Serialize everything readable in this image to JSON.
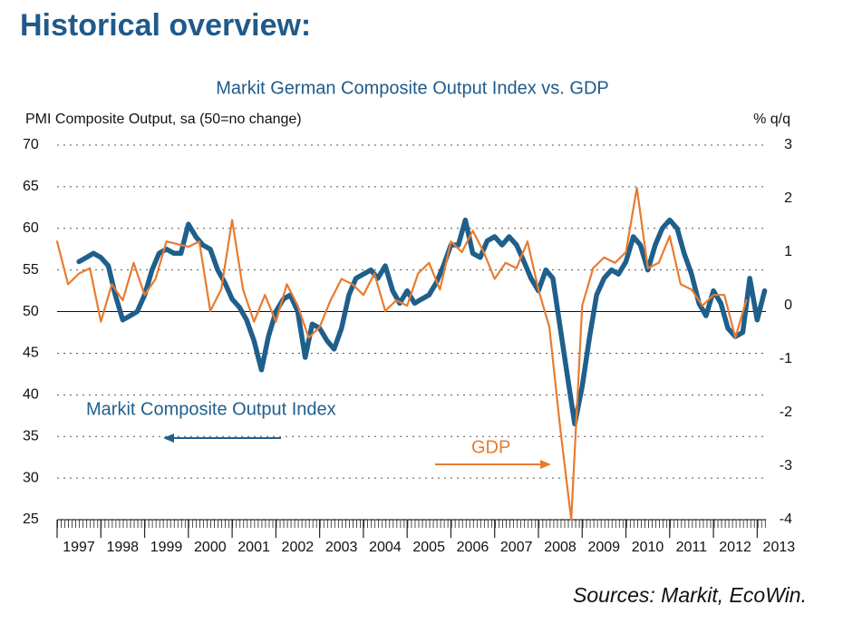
{
  "header": {
    "title": "Historical overview:"
  },
  "chart_data": {
    "type": "line",
    "title": "Markit German Composite Output Index vs. GDP",
    "y_label": "PMI Composite Output, sa (50=no change)",
    "y2_label": "% q/q",
    "xlim": [
      1997,
      2013.2
    ],
    "xticks": [
      1997,
      1998,
      1999,
      2000,
      2001,
      2002,
      2003,
      2004,
      2005,
      2006,
      2007,
      2008,
      2009,
      2010,
      2011,
      2012,
      2013
    ],
    "ylim": [
      25,
      70
    ],
    "yticks": [
      25,
      30,
      35,
      40,
      45,
      50,
      55,
      60,
      65,
      70
    ],
    "y2lim": [
      -4,
      3
    ],
    "y2ticks": [
      -4,
      -3,
      -2,
      -1,
      0,
      1,
      2,
      3
    ],
    "grid": true,
    "reference_line": 50,
    "series": [
      {
        "name": "Markit Composite Output Index",
        "color": "#1f5f8b",
        "axis": "y",
        "x": [
          1997.5,
          1997.67,
          1997.83,
          1998.0,
          1998.17,
          1998.33,
          1998.5,
          1998.67,
          1998.83,
          1999.0,
          1999.17,
          1999.33,
          1999.5,
          1999.67,
          1999.83,
          2000.0,
          2000.17,
          2000.33,
          2000.5,
          2000.67,
          2000.83,
          2001.0,
          2001.17,
          2001.33,
          2001.5,
          2001.67,
          2001.83,
          2002.0,
          2002.17,
          2002.33,
          2002.5,
          2002.67,
          2002.83,
          2003.0,
          2003.17,
          2003.33,
          2003.5,
          2003.67,
          2003.83,
          2004.0,
          2004.17,
          2004.33,
          2004.5,
          2004.67,
          2004.83,
          2005.0,
          2005.17,
          2005.33,
          2005.5,
          2005.67,
          2005.83,
          2006.0,
          2006.17,
          2006.33,
          2006.5,
          2006.67,
          2006.83,
          2007.0,
          2007.17,
          2007.33,
          2007.5,
          2007.67,
          2007.83,
          2008.0,
          2008.17,
          2008.33,
          2008.5,
          2008.67,
          2008.83,
          2009.0,
          2009.17,
          2009.33,
          2009.5,
          2009.67,
          2009.83,
          2010.0,
          2010.17,
          2010.33,
          2010.5,
          2010.67,
          2010.83,
          2011.0,
          2011.17,
          2011.33,
          2011.5,
          2011.67,
          2011.83,
          2012.0,
          2012.17,
          2012.33,
          2012.5,
          2012.67,
          2012.83,
          2013.0,
          2013.17
        ],
        "values": [
          56,
          56.5,
          57,
          56.5,
          55.5,
          52,
          49,
          49.5,
          50,
          52,
          55,
          57,
          57.5,
          57,
          57,
          60.5,
          59,
          58,
          57.5,
          55,
          53.5,
          51.5,
          50.5,
          49,
          46.5,
          43,
          47,
          50,
          51.5,
          52,
          50,
          44.5,
          48.5,
          48,
          46.5,
          45.5,
          48,
          52,
          54,
          54.5,
          55,
          54,
          55.5,
          52.5,
          51,
          52.5,
          51,
          51.5,
          52,
          53.5,
          55.5,
          58,
          58,
          61,
          57,
          56.5,
          58.5,
          59,
          58,
          59,
          58,
          56,
          54,
          52.5,
          55,
          54,
          48,
          42,
          36.5,
          41,
          47,
          52,
          54,
          55,
          54.5,
          56,
          59,
          58,
          55,
          58,
          60,
          61,
          60,
          57,
          54.5,
          51,
          49.5,
          52.5,
          51,
          48,
          47,
          47.5,
          54,
          49,
          52.5
        ]
      },
      {
        "name": "GDP",
        "color": "#e87b2f",
        "axis": "y2",
        "x": [
          1997.0,
          1997.25,
          1997.5,
          1997.75,
          1998.0,
          1998.25,
          1998.5,
          1998.75,
          1999.0,
          1999.25,
          1999.5,
          1999.75,
          2000.0,
          2000.25,
          2000.5,
          2000.75,
          2001.0,
          2001.25,
          2001.5,
          2001.75,
          2002.0,
          2002.25,
          2002.5,
          2002.75,
          2003.0,
          2003.25,
          2003.5,
          2003.75,
          2004.0,
          2004.25,
          2004.5,
          2004.75,
          2005.0,
          2005.25,
          2005.5,
          2005.75,
          2006.0,
          2006.25,
          2006.5,
          2006.75,
          2007.0,
          2007.25,
          2007.5,
          2007.75,
          2008.0,
          2008.25,
          2008.5,
          2008.75,
          2009.0,
          2009.25,
          2009.5,
          2009.75,
          2010.0,
          2010.25,
          2010.5,
          2010.75,
          2011.0,
          2011.25,
          2011.5,
          2011.75,
          2012.0,
          2012.25,
          2012.5,
          2012.75
        ],
        "values": [
          1.2,
          0.4,
          0.6,
          0.7,
          -0.3,
          0.4,
          0.1,
          0.8,
          0.2,
          0.5,
          1.2,
          1.15,
          1.1,
          1.2,
          -0.1,
          0.3,
          1.6,
          0.3,
          -0.3,
          0.2,
          -0.3,
          0.4,
          0.0,
          -0.6,
          -0.4,
          0.1,
          0.5,
          0.4,
          0.2,
          0.6,
          -0.1,
          0.1,
          0.0,
          0.6,
          0.8,
          0.3,
          1.2,
          1.0,
          1.4,
          1.0,
          0.5,
          0.8,
          0.7,
          1.2,
          0.3,
          -0.4,
          -2.3,
          -4.0,
          0.0,
          0.7,
          0.9,
          0.8,
          1.0,
          2.2,
          0.7,
          0.8,
          1.3,
          0.4,
          0.3,
          0.0,
          0.2,
          0.2,
          -0.6,
          0.1
        ]
      }
    ],
    "source": "Sources: Markit, EcoWin."
  }
}
